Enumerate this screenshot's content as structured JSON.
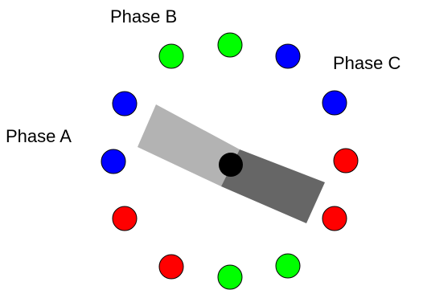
{
  "labels": {
    "phase_a": "Phase A",
    "phase_b": "Phase B",
    "phase_c": "Phase C"
  },
  "colors": {
    "phase_a": "#0000ff",
    "phase_b": "#00ff00",
    "phase_c": "#ff0000",
    "rotor_light": "#b3b3b3",
    "rotor_dark": "#666666",
    "rotor_pivot": "#000000",
    "outline": "#000000"
  },
  "stator_coils": [
    {
      "phase": "phase_a"
    },
    {
      "phase": "phase_a"
    },
    {
      "phase": "phase_c"
    },
    {
      "phase": "phase_c"
    },
    {
      "phase": "phase_b"
    },
    {
      "phase": "phase_b"
    },
    {
      "phase": "phase_c"
    },
    {
      "phase": "phase_c"
    },
    {
      "phase": "phase_a"
    },
    {
      "phase": "phase_a"
    },
    {
      "phase": "phase_b"
    },
    {
      "phase": "phase_b"
    }
  ]
}
